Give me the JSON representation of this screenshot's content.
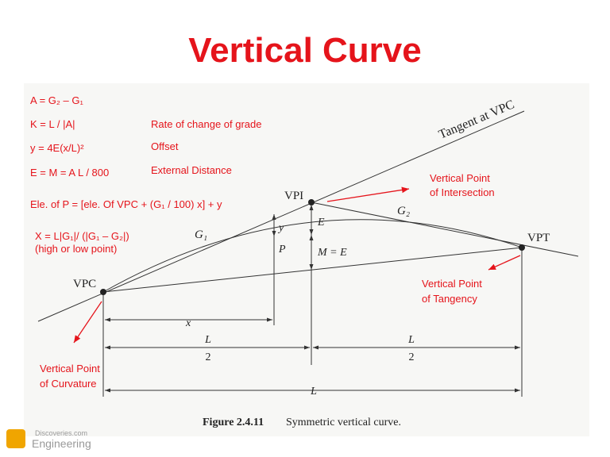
{
  "header": {
    "title": "Vertical Curve"
  },
  "formulas": [
    "A = G₂ – G₁",
    "K = L / |A|",
    "y = 4E(x/L)²",
    "E = M = A L / 800",
    "Ele. of P = [ele. Of VPC + (G₁ / 100) x] + y",
    "X = L|G₁|/ (|G₁ – G₂|)",
    "(high or low point)"
  ],
  "descriptions": [
    "Rate of change of grade",
    "Offset",
    "External Distance"
  ],
  "callouts": [
    {
      "lines": [
        "Vertical Point",
        "of Intersection"
      ]
    },
    {
      "lines": [
        "Vertical Point",
        "of Tangency"
      ]
    },
    {
      "lines": [
        "Vertical Point",
        "of Curvature"
      ]
    }
  ],
  "figure": {
    "labels": {
      "vpi": "VPI",
      "vpc": "VPC",
      "vpt": "VPT",
      "tangent": "Tangent at VPC",
      "g1": "G₁",
      "g2": "G₂",
      "e": "E",
      "y": "y",
      "p": "P",
      "m": "M = E",
      "x": "x"
    },
    "dimensions": {
      "half_left": {
        "num": "L",
        "den": "2"
      },
      "half_right": {
        "num": "L",
        "den": "2"
      },
      "full": "L"
    },
    "caption": {
      "number": "Figure 2.4.11",
      "text": "Symmetric vertical curve."
    }
  },
  "logo": {
    "site": "Discoveries.com",
    "name": "Engineering"
  }
}
